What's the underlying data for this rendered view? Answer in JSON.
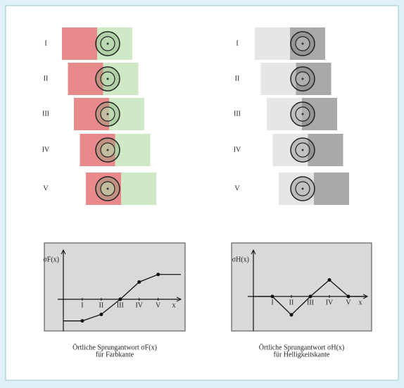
{
  "left_panel": {
    "rows": [
      "I",
      "II",
      "III",
      "IV",
      "V"
    ]
  },
  "right_panel": {
    "rows": [
      "I",
      "II",
      "III",
      "IV",
      "V"
    ]
  },
  "charts": [
    {
      "ylabel": "σF(x)",
      "xlabel": "x",
      "xlim": [
        0,
        6.2
      ],
      "ylim": [
        -1.5,
        2.25
      ],
      "xticks": [
        {
          "value": 1,
          "label": "I"
        },
        {
          "value": 2,
          "label": "II"
        },
        {
          "value": 3,
          "label": "III"
        },
        {
          "value": 4,
          "label": "IV"
        },
        {
          "value": 5,
          "label": "V"
        }
      ],
      "x": [
        0,
        1,
        2,
        3,
        4,
        5,
        6.2
      ],
      "values": [
        -1,
        -1,
        -0.7,
        0,
        0.8,
        1.15,
        1.15
      ],
      "caption": [
        "Örtliche Sprungantwort σF(x)",
        "für Farbkante"
      ]
    },
    {
      "ylabel": "σH(x)",
      "xlabel": "x",
      "xlim": [
        0,
        6
      ],
      "ylim": [
        -1.9,
        2.5
      ],
      "xticks": [
        {
          "value": 1,
          "label": "I"
        },
        {
          "value": 2,
          "label": "II"
        },
        {
          "value": 3,
          "label": "III"
        },
        {
          "value": 4,
          "label": "IV"
        },
        {
          "value": 5,
          "label": "V"
        }
      ],
      "x": [
        0,
        1,
        2,
        3,
        4,
        5,
        5.9
      ],
      "values": [
        0,
        0,
        -1,
        0,
        0.9,
        0,
        0
      ],
      "caption": [
        "Örtliche Sprungantwort σH(x)",
        "für Helligkeitskante"
      ]
    }
  ]
}
